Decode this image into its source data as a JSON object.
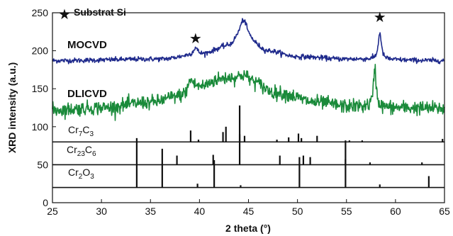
{
  "chart_data": {
    "type": "line",
    "xlabel": "2 theta (°)",
    "ylabel": "XRD intensity (a.u.)",
    "xlim": [
      25,
      65
    ],
    "ylim": [
      0,
      250
    ],
    "xticks": [
      "25",
      "30",
      "35",
      "40",
      "45",
      "50",
      "55",
      "60",
      "65"
    ],
    "yticks": [
      "0",
      "50",
      "100",
      "150",
      "200",
      "250"
    ],
    "grid": false,
    "legend": {
      "symbol": "★",
      "label": "Substrat Si",
      "position": "top-left"
    },
    "colors": {
      "mocvd": "#1f2a8c",
      "dlicvd": "#1a8a3a",
      "reference": "#111111"
    },
    "series": [
      {
        "name": "MOCVD",
        "type": "line",
        "baseline": 187,
        "noise": 1.6,
        "background": [
          [
            25,
            0
          ],
          [
            36,
            2
          ],
          [
            40,
            8
          ],
          [
            43,
            18
          ],
          [
            44,
            24
          ],
          [
            45,
            23
          ],
          [
            47,
            12
          ],
          [
            50,
            5
          ],
          [
            55,
            2
          ],
          [
            65,
            0
          ]
        ],
        "peaks": [
          {
            "x": 39.6,
            "height": 9,
            "width": 0.25
          },
          {
            "x": 44.5,
            "height": 30,
            "width": 0.5
          },
          {
            "x": 58.4,
            "height": 36,
            "width": 0.18
          }
        ],
        "markers": [
          {
            "x": 39.6,
            "y": 210,
            "symbol": "★"
          },
          {
            "x": 58.4,
            "y": 238,
            "symbol": "★"
          }
        ]
      },
      {
        "name": "DLICVD",
        "type": "line",
        "baseline": 122,
        "noise": 4.5,
        "background": [
          [
            25,
            0
          ],
          [
            30,
            3
          ],
          [
            35,
            10
          ],
          [
            38,
            18
          ],
          [
            40,
            30
          ],
          [
            42,
            40
          ],
          [
            43,
            42
          ],
          [
            45,
            38
          ],
          [
            48,
            22
          ],
          [
            52,
            10
          ],
          [
            55,
            5
          ],
          [
            60,
            3
          ],
          [
            65,
            2
          ]
        ],
        "peaks": [
          {
            "x": 39.1,
            "height": 15,
            "width": 0.3
          },
          {
            "x": 44.5,
            "height": 8,
            "width": 0.5
          },
          {
            "x": 57.9,
            "height": 52,
            "width": 0.16
          }
        ]
      },
      {
        "name": "Cr7C3",
        "type": "stick",
        "baseline": 80,
        "sticks": [
          [
            39.1,
            15
          ],
          [
            39.9,
            3
          ],
          [
            42.4,
            13
          ],
          [
            42.7,
            20
          ],
          [
            44.1,
            48
          ],
          [
            44.6,
            8
          ],
          [
            47.9,
            3
          ],
          [
            49.1,
            6
          ],
          [
            50.1,
            11
          ],
          [
            50.4,
            5
          ],
          [
            52.0,
            8
          ],
          [
            55.3,
            2
          ],
          [
            56.6,
            2
          ],
          [
            64.8,
            4
          ]
        ]
      },
      {
        "name": "Cr23C6",
        "type": "stick",
        "baseline": 50,
        "sticks": [
          [
            37.7,
            12
          ],
          [
            41.4,
            13
          ],
          [
            44.1,
            40
          ],
          [
            48.2,
            12
          ],
          [
            50.6,
            12
          ],
          [
            51.3,
            10
          ],
          [
            54.9,
            7
          ],
          [
            57.4,
            3
          ],
          [
            62.7,
            3
          ]
        ]
      },
      {
        "name": "Cr2O3",
        "type": "stick",
        "baseline": 20,
        "sticks": [
          [
            24.5,
            0
          ],
          [
            33.6,
            65
          ],
          [
            36.2,
            51
          ],
          [
            39.8,
            5
          ],
          [
            41.5,
            36
          ],
          [
            44.2,
            3
          ],
          [
            50.2,
            40
          ],
          [
            54.9,
            62
          ],
          [
            58.4,
            4
          ],
          [
            63.4,
            15
          ]
        ]
      }
    ],
    "labels": {
      "mocvd": "MOCVD",
      "dlicvd": "DLICVD",
      "cr7c3": {
        "base": "Cr",
        "sub1": "7",
        "mid": "C",
        "sub2": "3"
      },
      "cr23c6": {
        "base": "Cr",
        "sub1": "23",
        "mid": "C",
        "sub2": "6"
      },
      "cr2o3": {
        "base": "Cr",
        "sub1": "2",
        "mid": "O",
        "sub2": "3"
      }
    }
  }
}
